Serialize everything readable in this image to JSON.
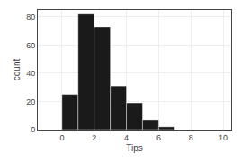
{
  "chart_data": {
    "type": "histogram",
    "bins": [
      0,
      1,
      2,
      3,
      4,
      5,
      6,
      7,
      8,
      9,
      10
    ],
    "counts": [
      25,
      82,
      73,
      31,
      19,
      7,
      2,
      0,
      0,
      0
    ],
    "color": "#1a1a1a",
    "xlabel": "Tips",
    "ylabel": "count",
    "xlim": [
      -1.5,
      10.5
    ],
    "ylim": [
      0,
      85
    ],
    "xticks": [
      0,
      2,
      4,
      6,
      8,
      10
    ],
    "yticks": [
      0,
      20,
      40,
      60,
      80
    ],
    "grid": true
  }
}
